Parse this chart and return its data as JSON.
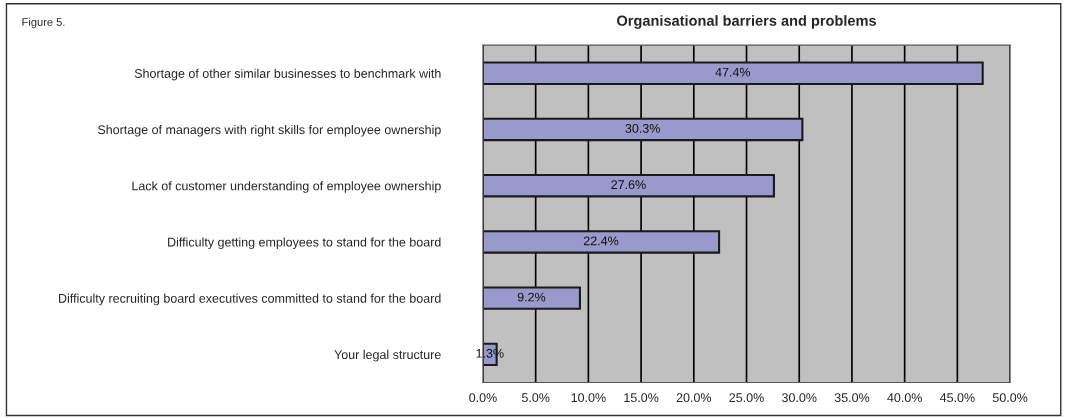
{
  "chart_data": {
    "type": "bar",
    "orientation": "horizontal",
    "title": "Organisational barriers and problems",
    "annotations": [
      "Figure 5."
    ],
    "categories": [
      "Shortage of other similar businesses to benchmark with",
      "Shortage of managers with right skills for employee ownership",
      "Lack of customer understanding of employee ownership",
      "Difficulty getting employees to stand for the board",
      "Difficulty recruiting board executives committed to stand for the board",
      "Your legal structure"
    ],
    "values": [
      47.4,
      30.3,
      27.6,
      22.4,
      9.2,
      1.3
    ],
    "value_labels": [
      "47.4%",
      "30.3%",
      "27.6%",
      "22.4%",
      "9.2%",
      "1.3%"
    ],
    "color": "#9999cc",
    "xlim": [
      0,
      50
    ],
    "xticks": [
      {
        "value": 0,
        "label": "0.0%"
      },
      {
        "value": 5,
        "label": "5.0%"
      },
      {
        "value": 10,
        "label": "10.0%"
      },
      {
        "value": 15,
        "label": "15.0%"
      },
      {
        "value": 20,
        "label": "20.0%"
      },
      {
        "value": 25,
        "label": "25.0%"
      },
      {
        "value": 30,
        "label": "30.0%"
      },
      {
        "value": 35,
        "label": "35.0%"
      },
      {
        "value": 40,
        "label": "40.0%"
      },
      {
        "value": 45,
        "label": "45.0%"
      },
      {
        "value": 50,
        "label": "50.0%"
      }
    ],
    "grid": "x",
    "legend": false
  }
}
